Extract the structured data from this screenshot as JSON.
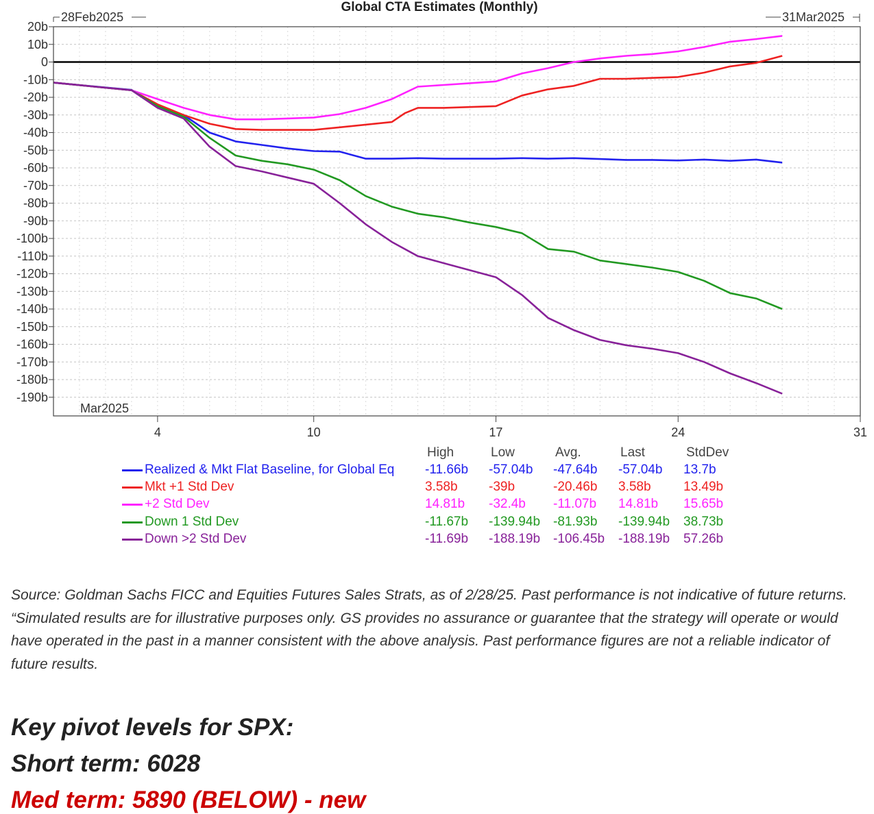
{
  "chart_data": {
    "type": "line",
    "title": "Global CTA Estimates (Monthly)",
    "period_start_label": "28Feb2025",
    "period_end_label": "31Mar2025",
    "month_label": "Mar2025",
    "y_ticks": [
      "20b",
      "10b",
      "0",
      "-10b",
      "-20b",
      "-30b",
      "-40b",
      "-50b",
      "-60b",
      "-70b",
      "-80b",
      "-90b",
      "-100b",
      "-110b",
      "-120b",
      "-130b",
      "-140b",
      "-150b",
      "-160b",
      "-170b",
      "-180b",
      "-190b"
    ],
    "y_tick_values": [
      20,
      10,
      0,
      -10,
      -20,
      -30,
      -40,
      -50,
      -60,
      -70,
      -80,
      -90,
      -100,
      -110,
      -120,
      -130,
      -140,
      -150,
      -160,
      -170,
      -180,
      -190
    ],
    "x_ticks": [
      "4",
      "10",
      "17",
      "24",
      "31"
    ],
    "x_tick_values": [
      4,
      10,
      17,
      24,
      31
    ],
    "xlim": [
      0,
      31
    ],
    "ylim": [
      -198,
      20
    ],
    "grid": true,
    "zero_line": true,
    "legend_headers": [
      "High",
      "Low",
      "Avg.",
      "Last",
      "StdDev"
    ],
    "series": [
      {
        "name": "Realized & Mkt Flat Baseline, for Global Eq",
        "color": "#2222ee",
        "stats": [
          "-11.66b",
          "-57.04b",
          "-47.64b",
          "-57.04b",
          "13.7b"
        ],
        "x": [
          0,
          3,
          4,
          5,
          6,
          7,
          8,
          9,
          10,
          11,
          12,
          13,
          14,
          15,
          16,
          17,
          18,
          19,
          20,
          21,
          22,
          23,
          24,
          25,
          26,
          27,
          28
        ],
        "y": [
          -11.7,
          -15.8,
          -25,
          -30,
          -40,
          -45,
          -47,
          -49,
          -50.5,
          -50.8,
          -54.8,
          -54.8,
          -54.5,
          -54.8,
          -54.8,
          -54.8,
          -54.5,
          -54.8,
          -54.5,
          -55,
          -55.5,
          -55.5,
          -55.8,
          -55.3,
          -56,
          -55.3,
          -57
        ]
      },
      {
        "name": "Mkt +1 Std Dev",
        "color": "#ee2222",
        "stats": [
          "3.58b",
          "-39b",
          "-20.46b",
          "3.58b",
          "13.49b"
        ],
        "x": [
          0,
          3,
          4,
          5,
          6,
          7,
          8,
          9,
          10,
          11,
          12,
          13,
          13.5,
          14,
          15,
          16,
          17,
          18,
          19,
          20,
          21,
          22,
          23,
          24,
          25,
          26,
          27,
          28
        ],
        "y": [
          -11.7,
          -16,
          -24,
          -30,
          -35,
          -38,
          -38.5,
          -38.5,
          -38.5,
          -37,
          -35.5,
          -34,
          -29,
          -26,
          -26,
          -25.5,
          -25,
          -19,
          -15.5,
          -13.5,
          -9.5,
          -9.5,
          -9,
          -8.5,
          -6,
          -2.5,
          -0.5,
          3.5
        ]
      },
      {
        "name": "+2 Std Dev",
        "color": "#ff22ff",
        "stats": [
          "14.81b",
          "-32.4b",
          "-11.07b",
          "14.81b",
          "15.65b"
        ],
        "x": [
          0,
          3,
          4,
          5,
          6,
          7,
          8,
          9,
          10,
          11,
          12,
          13,
          14,
          15,
          16,
          17,
          18,
          19,
          20,
          21,
          22,
          23,
          24,
          25,
          26,
          27,
          28
        ],
        "y": [
          -11.7,
          -16,
          -21,
          -26,
          -30,
          -32.5,
          -32.5,
          -32,
          -31.5,
          -29.5,
          -26,
          -21,
          -14,
          -13,
          -12,
          -11,
          -6.5,
          -3.5,
          0,
          2,
          3.5,
          4.5,
          6,
          8.5,
          11.5,
          13,
          14.8
        ]
      },
      {
        "name": "Down 1 Std Dev",
        "color": "#229922",
        "stats": [
          "-11.67b",
          "-139.94b",
          "-81.93b",
          "-139.94b",
          "38.73b"
        ],
        "x": [
          0,
          3,
          4,
          5,
          6,
          7,
          8,
          9,
          10,
          11,
          12,
          13,
          14,
          15,
          16,
          17,
          18,
          19,
          20,
          21,
          22,
          23,
          24,
          25,
          26,
          27,
          28
        ],
        "y": [
          -11.7,
          -16,
          -25,
          -31,
          -43,
          -53,
          -56,
          -58,
          -61,
          -67,
          -76,
          -82,
          -86,
          -88,
          -91,
          -93.5,
          -97,
          -106,
          -107.5,
          -112.5,
          -114.5,
          -116.5,
          -119,
          -124,
          -131,
          -134,
          -140
        ]
      },
      {
        "name": "Down >2 Std Dev",
        "color": "#882299",
        "stats": [
          "-11.69b",
          "-188.19b",
          "-106.45b",
          "-188.19b",
          "57.26b"
        ],
        "x": [
          0,
          3,
          4,
          5,
          6,
          7,
          8,
          9,
          10,
          11,
          12,
          13,
          14,
          15,
          16,
          17,
          18,
          19,
          20,
          21,
          22,
          23,
          24,
          25,
          26,
          27,
          28
        ],
        "y": [
          -11.7,
          -16,
          -26,
          -32,
          -48,
          -59,
          -62,
          -65.5,
          -69,
          -80,
          -92,
          -102,
          -110,
          -114,
          -118,
          -122,
          -132,
          -145,
          -152,
          -157.5,
          -160.5,
          -162.5,
          -165,
          -170,
          -176.5,
          -182,
          -188
        ]
      }
    ]
  },
  "source_note": "Source: Goldman Sachs FICC and Equities Futures Sales Strats, as of 2/28/25. Past performance is not indicative of future returns. “Simulated results are for illustrative purposes only. GS provides no assurance or guarantee that the strategy will operate or would have operated in the past in a manner consistent with the above analysis. Past performance figures are not a reliable indicator of future results.",
  "pivots": {
    "heading": "Key pivot levels for SPX:",
    "short_term": "Short term: 6028",
    "med_term": "Med term: 5890 (BELOW) - new",
    "med_term_color": "#cc0000"
  }
}
